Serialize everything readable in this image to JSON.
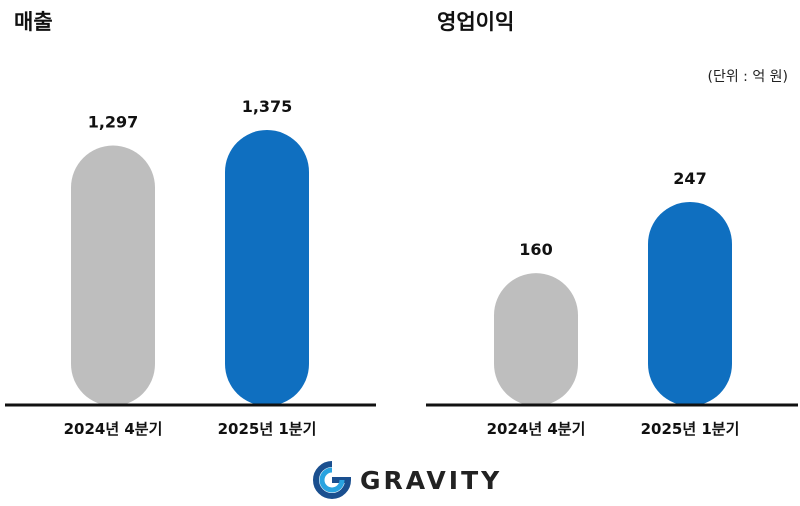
{
  "unit_label": "(단위 : 억 원)",
  "brand": {
    "name": "GRAVITY",
    "colors": {
      "blue": "#1976c4",
      "gray": "#bebebe"
    }
  },
  "chart_data": [
    {
      "type": "bar",
      "title": "매출",
      "categories": [
        "2024년 4분기",
        "2025년 1분기"
      ],
      "values": [
        1297,
        1375
      ],
      "value_labels": [
        "1,297",
        "1,375"
      ],
      "colors": [
        "#bebebe",
        "#0f6fc0"
      ],
      "grid": false
    },
    {
      "type": "bar",
      "title": "영업이익",
      "categories": [
        "2024년 4분기",
        "2025년 1분기"
      ],
      "values": [
        160,
        247
      ],
      "value_labels": [
        "160",
        "247"
      ],
      "colors": [
        "#bebebe",
        "#0f6fc0"
      ],
      "grid": false
    }
  ]
}
